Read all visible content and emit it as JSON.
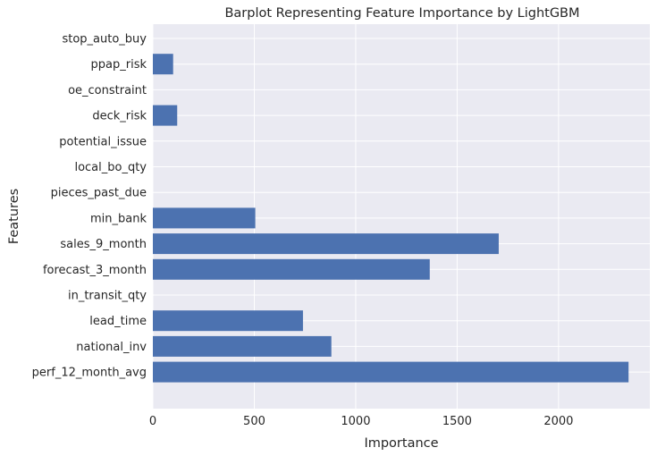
{
  "chart_data": {
    "type": "bar",
    "orientation": "horizontal",
    "title": "Barplot Representing Feature Importance by LightGBM",
    "xlabel": "Importance",
    "ylabel": "Features",
    "xlim": [
      0,
      2450
    ],
    "xticks": [
      0,
      500,
      1000,
      1500,
      2000
    ],
    "grid": true,
    "categories": [
      "perf_12_month_avg",
      "national_inv",
      "lead_time",
      "in_transit_qty",
      "forecast_3_month",
      "sales_9_month",
      "min_bank",
      "pieces_past_due",
      "local_bo_qty",
      "potential_issue",
      "deck_risk",
      "oe_constraint",
      "ppap_risk",
      "stop_auto_buy"
    ],
    "values": [
      2345,
      880,
      740,
      0,
      1365,
      1705,
      505,
      0,
      0,
      0,
      120,
      0,
      100,
      0
    ],
    "colors": {
      "bar": "#4c72b0",
      "plot_bg": "#eaeaf2",
      "grid": "#ffffff",
      "text": "#262626"
    }
  }
}
